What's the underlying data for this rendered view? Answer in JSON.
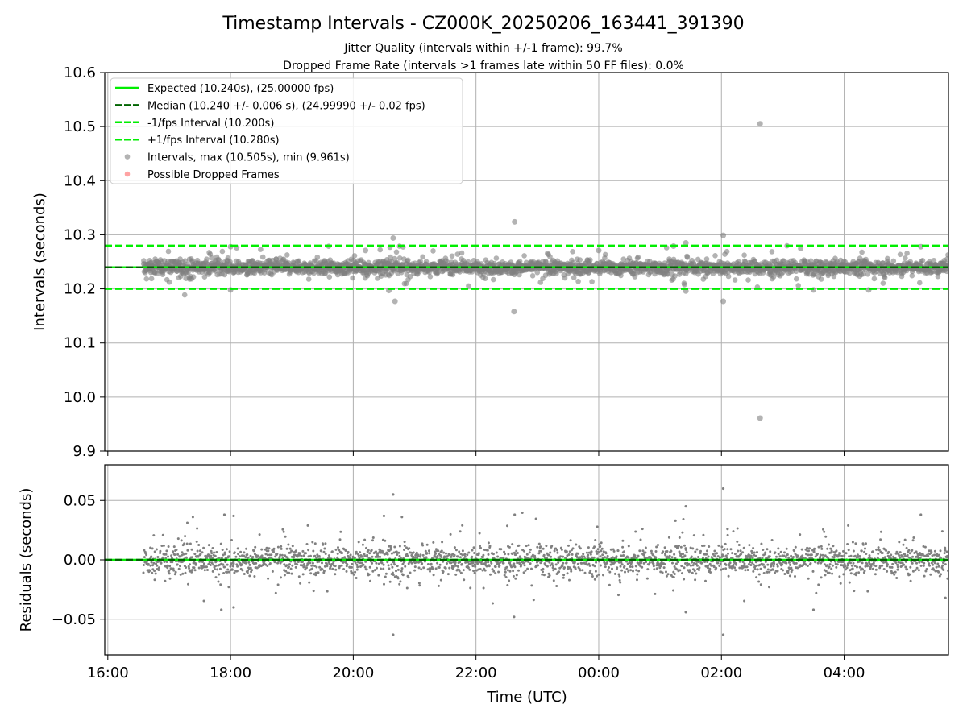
{
  "title": "Timestamp Intervals - CZ000K_20250206_163441_391390",
  "subtitle_lines": [
    "Jitter Quality (intervals within +/-1 frame): 99.7%",
    "Dropped Frame Rate (intervals >1 frames late within 50 FF files): 0.0%"
  ],
  "colors": {
    "expected": "#00ee00",
    "median": "#006400",
    "bounds": "#00ee00",
    "points": "#808080",
    "dropped": "#ff6666",
    "grid": "#b0b0b0"
  },
  "chart_data": [
    {
      "type": "scatter",
      "panel": "intervals",
      "xlabel": "",
      "ylabel": "Intervals (seconds)",
      "xlim": [
        15.95,
        29.7
      ],
      "ylim": [
        9.9,
        10.6
      ],
      "yticks": [
        9.9,
        10.0,
        10.1,
        10.2,
        10.3,
        10.4,
        10.5,
        10.6
      ],
      "ytick_labels": [
        "9.9",
        "10.0",
        "10.1",
        "10.2",
        "10.3",
        "10.4",
        "10.5",
        "10.6"
      ],
      "xticks": [
        16,
        18,
        20,
        22,
        24,
        26,
        28
      ],
      "xtick_labels": [
        "16:00",
        "18:00",
        "20:00",
        "22:00",
        "00:00",
        "02:00",
        "04:00"
      ],
      "grid": true,
      "legend_position": "upper-left",
      "reference_lines": [
        {
          "name": "Expected (10.240s), (25.00000 fps)",
          "y": 10.24,
          "style": "solid",
          "color": "#00ee00"
        },
        {
          "name": "Median (10.240 +/- 0.006 s), (24.99990 +/- 0.02 fps)",
          "y": 10.24,
          "style": "dashed",
          "color": "#006400"
        },
        {
          "name": "-1/fps Interval (10.200s)",
          "y": 10.2,
          "style": "dashed",
          "color": "#00ee00"
        },
        {
          "name": "+1/fps Interval (10.280s)",
          "y": 10.28,
          "style": "dashed",
          "color": "#00ee00"
        }
      ],
      "series": [
        {
          "name": "Intervals, max (10.505s), min (9.961s)",
          "marker": "circle",
          "color": "#808080",
          "center": 10.24,
          "spread": 0.006,
          "x_start": 16.58,
          "x_end": 29.7
        },
        {
          "name": "Possible Dropped Frames",
          "marker": "circle",
          "color": "#ff6666",
          "points": []
        }
      ],
      "outliers": [
        [
          18.0,
          10.198
        ],
        [
          18.0,
          10.278
        ],
        [
          18.1,
          10.276
        ],
        [
          20.2,
          10.271
        ],
        [
          20.65,
          10.294
        ],
        [
          20.68,
          10.177
        ],
        [
          20.58,
          10.197
        ],
        [
          22.63,
          10.324
        ],
        [
          22.62,
          10.158
        ],
        [
          24.0,
          10.271
        ],
        [
          25.22,
          10.279
        ],
        [
          25.42,
          10.285
        ],
        [
          25.42,
          10.196
        ],
        [
          26.03,
          10.299
        ],
        [
          26.03,
          10.177
        ],
        [
          26.63,
          10.505
        ],
        [
          26.63,
          9.961
        ],
        [
          27.5,
          10.198
        ],
        [
          28.4,
          10.198
        ],
        [
          29.25,
          10.278
        ]
      ]
    },
    {
      "type": "scatter",
      "panel": "residuals",
      "xlabel": "Time (UTC)",
      "ylabel": "Residuals (seconds)",
      "xlim": [
        15.95,
        29.7
      ],
      "ylim": [
        -0.08,
        0.08
      ],
      "yticks": [
        -0.05,
        0.0,
        0.05
      ],
      "ytick_labels": [
        "−0.05",
        "0.00",
        "0.05"
      ],
      "xticks": [
        16,
        18,
        20,
        22,
        24,
        26,
        28
      ],
      "xtick_labels": [
        "16:00",
        "18:00",
        "20:00",
        "22:00",
        "00:00",
        "02:00",
        "04:00"
      ],
      "grid": true,
      "reference_lines": [
        {
          "name": "zero",
          "y": 0.0,
          "style": "solid",
          "color": "#00ee00"
        },
        {
          "name": "median",
          "y": 0.0,
          "style": "dashed",
          "color": "#006400"
        }
      ],
      "series": [
        {
          "name": "Residuals",
          "marker": "dot",
          "color": "#808080",
          "center": 0.0,
          "spread": 0.006,
          "x_start": 16.58,
          "x_end": 29.7
        }
      ],
      "outliers": [
        [
          17.85,
          -0.042
        ],
        [
          18.05,
          -0.04
        ],
        [
          17.9,
          0.038
        ],
        [
          18.05,
          0.037
        ],
        [
          20.5,
          0.037
        ],
        [
          20.65,
          0.055
        ],
        [
          20.65,
          -0.063
        ],
        [
          22.63,
          0.038
        ],
        [
          22.62,
          -0.048
        ],
        [
          25.25,
          0.033
        ],
        [
          25.42,
          0.045
        ],
        [
          25.42,
          -0.044
        ],
        [
          26.03,
          0.06
        ],
        [
          26.03,
          -0.063
        ],
        [
          26.1,
          0.026
        ],
        [
          27.5,
          -0.042
        ],
        [
          29.25,
          0.038
        ],
        [
          29.65,
          -0.032
        ]
      ]
    }
  ]
}
